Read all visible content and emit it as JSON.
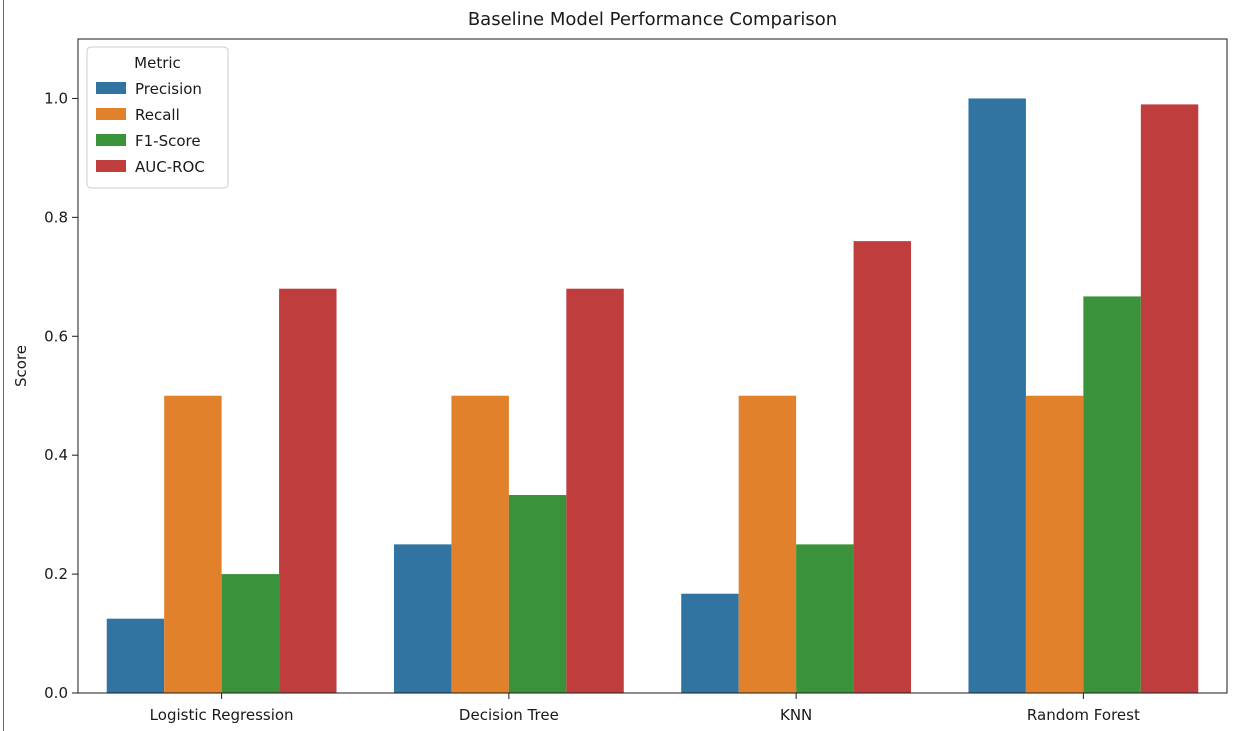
{
  "chart_data": {
    "type": "bar",
    "title": "Baseline Model Performance Comparison",
    "xlabel": "",
    "ylabel": "Score",
    "ylim": [
      0,
      1.1
    ],
    "yticks": [
      "0.0",
      "0.2",
      "0.4",
      "0.6",
      "0.8",
      "1.0"
    ],
    "categories": [
      "Logistic Regression",
      "Decision Tree",
      "KNN",
      "Random Forest"
    ],
    "legend": {
      "title": "Metric",
      "position": "upper-left"
    },
    "grid": false,
    "series": [
      {
        "name": "Precision",
        "color": "#3274a1",
        "values": [
          0.125,
          0.25,
          0.167,
          1.0
        ]
      },
      {
        "name": "Recall",
        "color": "#e1812c",
        "values": [
          0.5,
          0.5,
          0.5,
          0.5
        ]
      },
      {
        "name": "F1-Score",
        "color": "#3a923a",
        "values": [
          0.2,
          0.333,
          0.25,
          0.667
        ]
      },
      {
        "name": "AUC-ROC",
        "color": "#c03d3e",
        "values": [
          0.68,
          0.68,
          0.76,
          0.99
        ]
      }
    ]
  }
}
